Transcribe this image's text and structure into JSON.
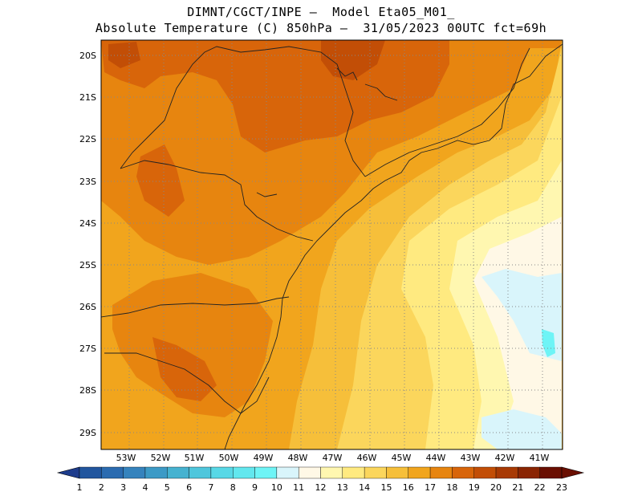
{
  "header": {
    "line1": "DIMNT/CGCT/INPE —  Model Eta05_M01_",
    "line2": "Absolute Temperature (C) 850hPa —  31/05/2023 00UTC fct=69h"
  },
  "map": {
    "lat_labels": [
      "20S",
      "21S",
      "22S",
      "23S",
      "24S",
      "25S",
      "26S",
      "27S",
      "28S",
      "29S"
    ],
    "lon_labels": [
      "53W",
      "52W",
      "51W",
      "50W",
      "49W",
      "48W",
      "47W",
      "46W",
      "45W",
      "44W",
      "43W",
      "42W",
      "41W"
    ],
    "extent": {
      "lon_min": -53.8,
      "lon_max": -40.6,
      "lat_min": -29.4,
      "lat_max": -19.8
    },
    "grid": "dotted"
  },
  "colorbar": {
    "labels": [
      "1",
      "2",
      "3",
      "4",
      "5",
      "6",
      "7",
      "8",
      "9",
      "10",
      "11",
      "12",
      "13",
      "14",
      "15",
      "16",
      "17",
      "18",
      "19",
      "20",
      "21",
      "22",
      "23"
    ],
    "colors": [
      "#1d3c8c",
      "#21569e",
      "#2b6bb0",
      "#3583bd",
      "#3c9ac6",
      "#46b2d0",
      "#4fc6dc",
      "#58d8e6",
      "#62e7ee",
      "#6ef4f6",
      "#d9f5fb",
      "#fff8e6",
      "#fff7b0",
      "#ffea80",
      "#fbd65c",
      "#f6bf3a",
      "#f1a51d",
      "#e7850f",
      "#d8650a",
      "#c24e06",
      "#a83a04",
      "#8a2503",
      "#6a0f02"
    ]
  },
  "chart_data": {
    "type": "heatmap",
    "title": "Absolute Temperature (C) 850hPa",
    "variable": "Absolute Temperature (C)",
    "level": "850hPa",
    "run": "31/05/2023 00UTC",
    "forecast": "fct=69h",
    "contour_levels": [
      10,
      11,
      12,
      13,
      14,
      15,
      16,
      17,
      18,
      19,
      20,
      21,
      22,
      23
    ],
    "regions": [
      {
        "value": 19.5,
        "lon": -48.2,
        "lat": -20.4,
        "r": 1.4
      },
      {
        "value": 18.5,
        "lon": -50.5,
        "lat": -21.2,
        "r": 2.8
      },
      {
        "value": 18.5,
        "lon": -52.0,
        "lat": -23.2,
        "r": 1.4
      },
      {
        "value": 18.5,
        "lon": -51.0,
        "lat": -27.6,
        "r": 1.0
      },
      {
        "value": 17.5,
        "lon": -51.5,
        "lat": -26.8,
        "r": 2.2
      },
      {
        "value": 16.5,
        "lon": -51.5,
        "lat": -25.0,
        "r": 3.0
      },
      {
        "value": 15.5,
        "lon": -48.5,
        "lat": -26.5,
        "r": 3.0
      },
      {
        "value": 14.5,
        "lon": -46.5,
        "lat": -24.0,
        "r": 3.0
      },
      {
        "value": 13.0,
        "lon": -44.0,
        "lat": -25.5,
        "r": 3.0
      },
      {
        "value": 11.5,
        "lon": -42.0,
        "lat": -27.0,
        "r": 3.0
      },
      {
        "value": 10.5,
        "lon": -42.0,
        "lat": -26.5,
        "r": 1.2
      },
      {
        "value": 10.5,
        "lon": -43.0,
        "lat": -29.0,
        "r": 0.8
      }
    ]
  }
}
